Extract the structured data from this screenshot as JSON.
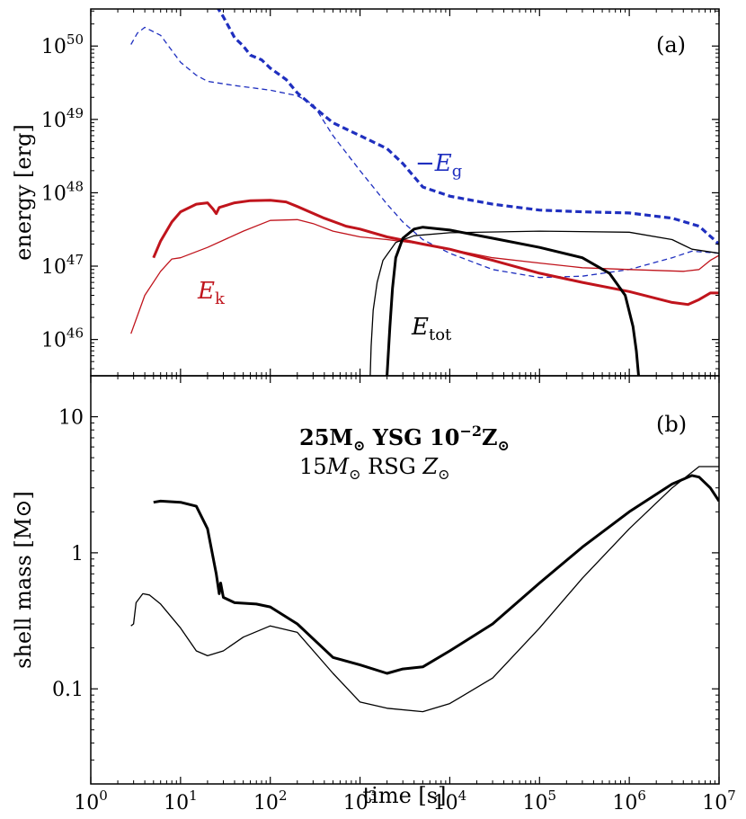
{
  "chart_data": [
    {
      "type": "line",
      "panel_label": "(a)",
      "ylabel": "energy [erg]",
      "xlabel": "",
      "xscale": "log",
      "yscale": "log",
      "xlim": [
        1,
        10000000
      ],
      "ylim": [
        3.2e+45,
        3.2e+50
      ],
      "x_ticks": [
        {
          "v": 1,
          "b": "10",
          "e": "0"
        },
        {
          "v": 10,
          "b": "10",
          "e": "1"
        },
        {
          "v": 100,
          "b": "10",
          "e": "2"
        },
        {
          "v": 1000,
          "b": "10",
          "e": "3"
        },
        {
          "v": 10000,
          "b": "10",
          "e": "4"
        },
        {
          "v": 100000,
          "b": "10",
          "e": "5"
        },
        {
          "v": 1000000,
          "b": "10",
          "e": "6"
        },
        {
          "v": 10000000,
          "b": "10",
          "e": "7"
        }
      ],
      "y_ticks": [
        {
          "v": 1e+46,
          "b": "10",
          "e": "46"
        },
        {
          "v": 1e+47,
          "b": "10",
          "e": "47"
        },
        {
          "v": 1e+48,
          "b": "10",
          "e": "48"
        },
        {
          "v": 1e+49,
          "b": "10",
          "e": "49"
        },
        {
          "v": 1e+50,
          "b": "10",
          "e": "50"
        }
      ],
      "annotations": {
        "eg": {
          "pre": "−",
          "main": "E",
          "sub": "g"
        },
        "ek": {
          "main": "E",
          "sub": "k"
        },
        "etot": {
          "main": "E",
          "sub": "tot"
        }
      },
      "series": [
        {
          "color": "#1f2fbf",
          "style": "dashed-thick",
          "points": [
            [
              22,
              4.5e+50
            ],
            [
              30,
              2.5e+50
            ],
            [
              40,
              1.3e+50
            ],
            [
              50,
              1e+50
            ],
            [
              60,
              7.5e+49
            ],
            [
              80,
              6.5e+49
            ],
            [
              100,
              5e+49
            ],
            [
              150,
              3.5e+49
            ],
            [
              200,
              2.3e+49
            ],
            [
              300,
              1.5e+49
            ],
            [
              500,
              9e+48
            ],
            [
              1000,
              6e+48
            ],
            [
              2000,
              4e+48
            ],
            [
              3000,
              2.5e+48
            ],
            [
              5000,
              1.2e+48
            ],
            [
              10000,
              9e+47
            ],
            [
              30000,
              7e+47
            ],
            [
              100000,
              5.8e+47
            ],
            [
              300000,
              5.5e+47
            ],
            [
              1000000,
              5.3e+47
            ],
            [
              3000000,
              4.5e+47
            ],
            [
              6000000,
              3.5e+47
            ],
            [
              10000000,
              2e+47
            ]
          ]
        },
        {
          "color": "#1f2fbf",
          "style": "dashed-thin",
          "points": [
            [
              2.8,
              1.05e+50
            ],
            [
              3.3,
              1.5e+50
            ],
            [
              4,
              1.8e+50
            ],
            [
              6,
              1.4e+50
            ],
            [
              10,
              6e+49
            ],
            [
              15,
              4e+49
            ],
            [
              20,
              3.3e+49
            ],
            [
              40,
              2.9e+49
            ],
            [
              100,
              2.5e+49
            ],
            [
              200,
              2.1e+49
            ],
            [
              300,
              1.6e+49
            ],
            [
              500,
              6e+48
            ],
            [
              1000,
              2e+48
            ],
            [
              2000,
              7e+47
            ],
            [
              3000,
              4e+47
            ],
            [
              5000,
              2.3e+47
            ],
            [
              10000,
              1.5e+47
            ],
            [
              30000,
              9e+46
            ],
            [
              100000,
              7e+46
            ],
            [
              300000,
              7.3e+46
            ],
            [
              1000000,
              9e+46
            ],
            [
              3000000,
              1.3e+47
            ],
            [
              5000000,
              1.6e+47
            ],
            [
              10000000,
              1.5e+47
            ]
          ]
        },
        {
          "color": "#c0141c",
          "style": "solid-thick",
          "points": [
            [
              5,
              1.3e+47
            ],
            [
              6,
              2.2e+47
            ],
            [
              8,
              4e+47
            ],
            [
              10,
              5.5e+47
            ],
            [
              15,
              7e+47
            ],
            [
              20,
              7.3e+47
            ],
            [
              23,
              6e+47
            ],
            [
              25,
              5.2e+47
            ],
            [
              27,
              6.3e+47
            ],
            [
              40,
              7.3e+47
            ],
            [
              60,
              7.8e+47
            ],
            [
              100,
              7.9e+47
            ],
            [
              150,
              7.5e+47
            ],
            [
              200,
              6.5e+47
            ],
            [
              400,
              4.5e+47
            ],
            [
              700,
              3.5e+47
            ],
            [
              1000,
              3.2e+47
            ],
            [
              2000,
              2.5e+47
            ],
            [
              5000,
              2e+47
            ],
            [
              10000,
              1.7e+47
            ],
            [
              30000,
              1.2e+47
            ],
            [
              100000,
              8e+46
            ],
            [
              300000,
              6e+46
            ],
            [
              1000000,
              4.5e+46
            ],
            [
              3000000,
              3.2e+46
            ],
            [
              4500000,
              3e+46
            ],
            [
              6000000,
              3.5e+46
            ],
            [
              8000000,
              4.3e+46
            ],
            [
              10000000,
              4.3e+46
            ]
          ]
        },
        {
          "color": "#c0141c",
          "style": "solid-thin",
          "points": [
            [
              2.8,
              1.2e+46
            ],
            [
              4,
              4e+46
            ],
            [
              6,
              8.5e+46
            ],
            [
              8,
              1.25e+47
            ],
            [
              10,
              1.3e+47
            ],
            [
              20,
              1.8e+47
            ],
            [
              50,
              3e+47
            ],
            [
              100,
              4.2e+47
            ],
            [
              200,
              4.3e+47
            ],
            [
              300,
              3.8e+47
            ],
            [
              500,
              3e+47
            ],
            [
              1000,
              2.5e+47
            ],
            [
              2000,
              2.3e+47
            ],
            [
              5000,
              2e+47
            ],
            [
              10000,
              1.7e+47
            ],
            [
              30000,
              1.3e+47
            ],
            [
              100000,
              1.1e+47
            ],
            [
              300000,
              9.5e+46
            ],
            [
              1000000,
              9e+46
            ],
            [
              4000000,
              8.5e+46
            ],
            [
              6000000,
              9e+46
            ],
            [
              8000000,
              1.2e+47
            ],
            [
              10000000,
              1.4e+47
            ]
          ]
        },
        {
          "color": "#000000",
          "style": "solid-thick",
          "points": [
            [
              2000,
              3.2e+45
            ],
            [
              2150,
              1.5e+46
            ],
            [
              2300,
              5e+46
            ],
            [
              2500,
              1.3e+47
            ],
            [
              3000,
              2.4e+47
            ],
            [
              4000,
              3.2e+47
            ],
            [
              5000,
              3.4e+47
            ],
            [
              10000,
              3.1e+47
            ],
            [
              30000,
              2.4e+47
            ],
            [
              100000,
              1.8e+47
            ],
            [
              300000,
              1.3e+47
            ],
            [
              600000,
              8e+46
            ],
            [
              900000,
              4e+46
            ],
            [
              1100000,
              1.5e+46
            ],
            [
              1200000,
              7e+45
            ],
            [
              1270000,
              3.2e+45
            ]
          ]
        },
        {
          "color": "#000000",
          "style": "solid-thin",
          "points": [
            [
              1300,
              3.2e+45
            ],
            [
              1330,
              8e+45
            ],
            [
              1400,
              2.5e+46
            ],
            [
              1550,
              6e+46
            ],
            [
              1800,
              1.2e+47
            ],
            [
              2500,
              2.1e+47
            ],
            [
              4000,
              2.6e+47
            ],
            [
              10000,
              2.85e+47
            ],
            [
              100000,
              3e+47
            ],
            [
              1000000,
              2.9e+47
            ],
            [
              3000000,
              2.3e+47
            ],
            [
              5000000,
              1.7e+47
            ],
            [
              10000000,
              1.5e+47
            ]
          ]
        }
      ]
    },
    {
      "type": "line",
      "panel_label": "(b)",
      "ylabel": "shell mass [M⊙]",
      "xlabel": "time [s]",
      "xscale": "log",
      "yscale": "log",
      "xlim": [
        1,
        10000000
      ],
      "ylim": [
        0.02,
        20
      ],
      "x_ticks": [
        {
          "v": 1,
          "b": "10",
          "e": "0"
        },
        {
          "v": 10,
          "b": "10",
          "e": "1"
        },
        {
          "v": 100,
          "b": "10",
          "e": "2"
        },
        {
          "v": 1000,
          "b": "10",
          "e": "3"
        },
        {
          "v": 10000,
          "b": "10",
          "e": "4"
        },
        {
          "v": 100000,
          "b": "10",
          "e": "5"
        },
        {
          "v": 1000000,
          "b": "10",
          "e": "6"
        },
        {
          "v": 10000000,
          "b": "10",
          "e": "7"
        }
      ],
      "y_ticks": [
        {
          "v": 0.1,
          "label": "0.1"
        },
        {
          "v": 1,
          "label": "1"
        },
        {
          "v": 10,
          "label": "10"
        }
      ],
      "legend": {
        "bold": {
          "a": "25M",
          "b": " YSG 10",
          "sup": "−2",
          "c": "Z"
        },
        "normal": {
          "a": "15",
          "m": "M",
          "b": " RSG ",
          "z": "Z"
        }
      },
      "series": [
        {
          "color": "#000000",
          "style": "solid-thick",
          "points": [
            [
              5,
              2.35
            ],
            [
              6,
              2.4
            ],
            [
              10,
              2.35
            ],
            [
              15,
              2.2
            ],
            [
              20,
              1.5
            ],
            [
              25,
              0.7
            ],
            [
              27,
              0.5
            ],
            [
              28,
              0.6
            ],
            [
              30,
              0.47
            ],
            [
              40,
              0.43
            ],
            [
              70,
              0.42
            ],
            [
              100,
              0.4
            ],
            [
              200,
              0.3
            ],
            [
              500,
              0.17
            ],
            [
              1000,
              0.15
            ],
            [
              2000,
              0.13
            ],
            [
              3000,
              0.14
            ],
            [
              5000,
              0.145
            ],
            [
              10000,
              0.19
            ],
            [
              30000,
              0.3
            ],
            [
              100000,
              0.6
            ],
            [
              300000,
              1.1
            ],
            [
              1000000,
              2.0
            ],
            [
              3000000,
              3.2
            ],
            [
              5000000,
              3.7
            ],
            [
              6000000,
              3.6
            ],
            [
              8000000,
              3.0
            ],
            [
              10000000,
              2.4
            ]
          ]
        },
        {
          "color": "#000000",
          "style": "solid-thin",
          "points": [
            [
              2.8,
              0.29
            ],
            [
              3,
              0.3
            ],
            [
              3.2,
              0.43
            ],
            [
              3.8,
              0.5
            ],
            [
              4.5,
              0.49
            ],
            [
              6,
              0.42
            ],
            [
              10,
              0.28
            ],
            [
              15,
              0.19
            ],
            [
              20,
              0.175
            ],
            [
              30,
              0.19
            ],
            [
              50,
              0.24
            ],
            [
              100,
              0.29
            ],
            [
              200,
              0.26
            ],
            [
              500,
              0.13
            ],
            [
              1000,
              0.08
            ],
            [
              2000,
              0.072
            ],
            [
              5000,
              0.068
            ],
            [
              10000,
              0.078
            ],
            [
              30000,
              0.12
            ],
            [
              100000,
              0.28
            ],
            [
              300000,
              0.65
            ],
            [
              1000000,
              1.5
            ],
            [
              3000000,
              3.0
            ],
            [
              6000000,
              4.3
            ],
            [
              10000000,
              4.3
            ]
          ]
        }
      ]
    }
  ]
}
